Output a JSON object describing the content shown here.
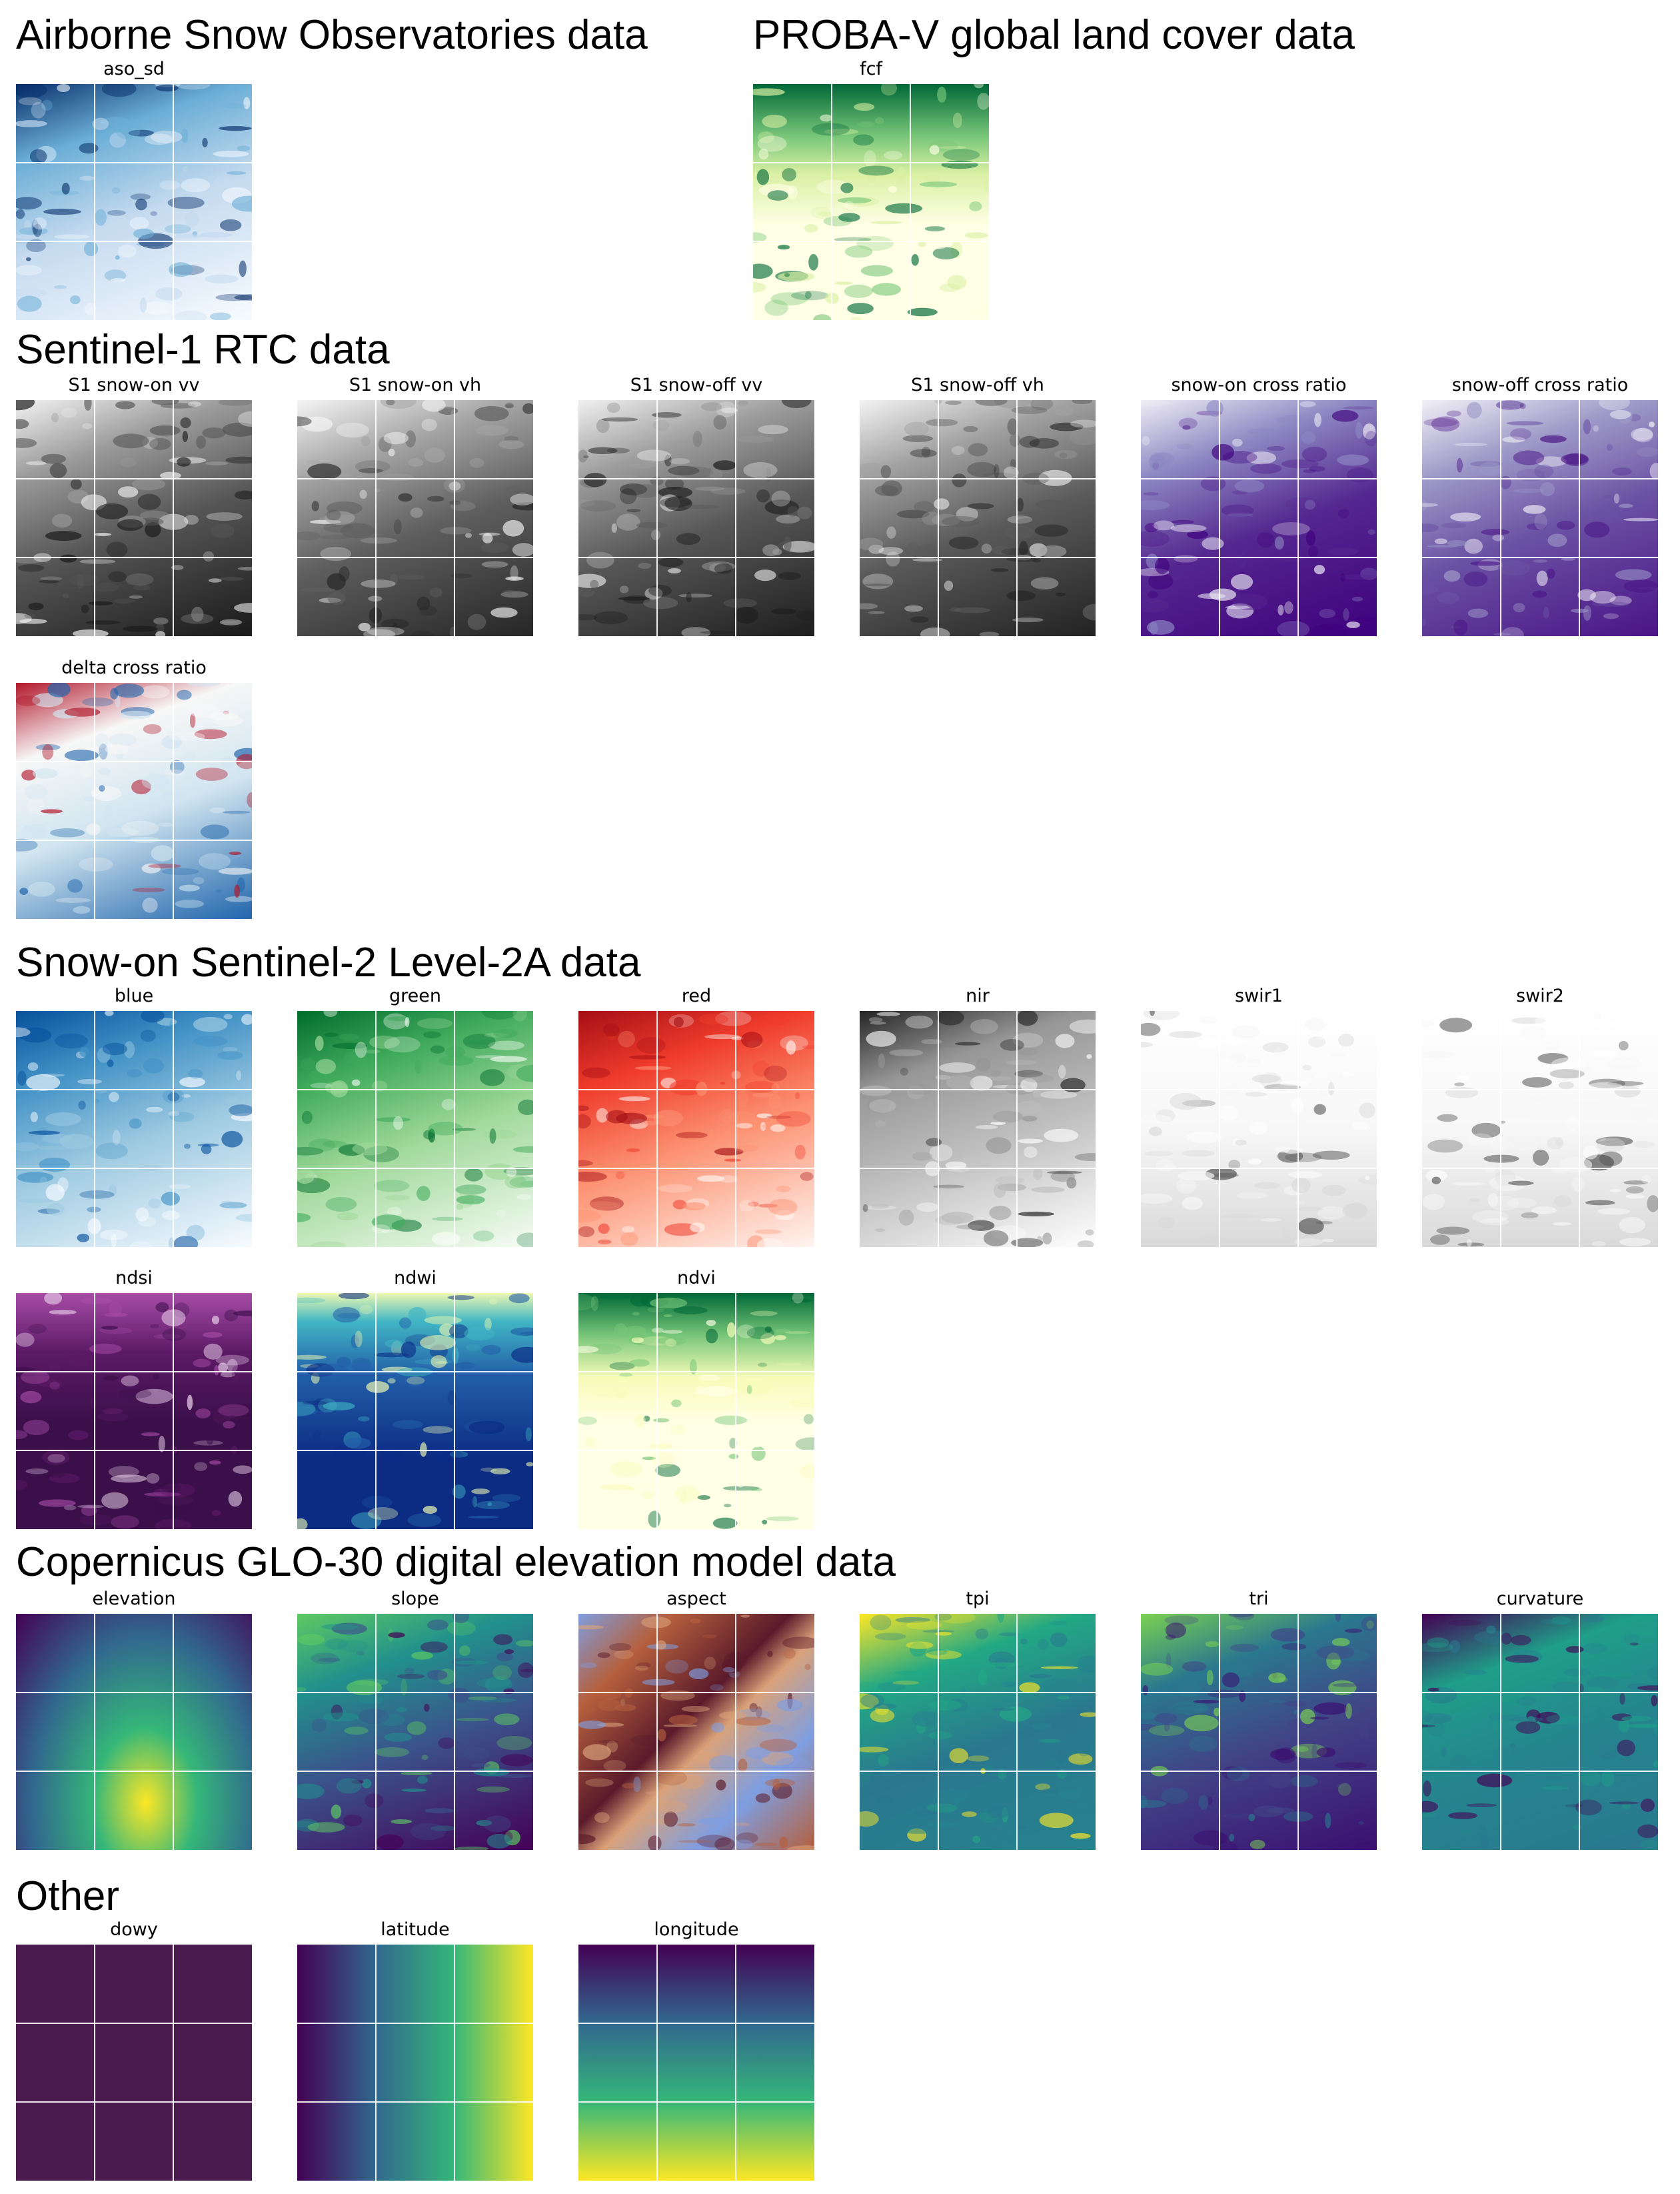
{
  "figure": {
    "sections": [
      {
        "title": "Airborne Snow Observatories data"
      },
      {
        "title": "PROBA-V global land cover data"
      },
      {
        "title": "Sentinel-1 RTC data"
      },
      {
        "title": "Snow-on Sentinel-2 Level-2A data"
      },
      {
        "title": "Copernicus GLO-30 digital elevation model data"
      },
      {
        "title": "Other"
      }
    ],
    "panels": [
      {
        "title": "aso_sd",
        "colormap": "Blues",
        "colors": [
          "#f7fbff",
          "#c6dbef",
          "#6baed6",
          "#08306b"
        ]
      },
      {
        "title": "fcf",
        "colormap": "YlGn",
        "colors": [
          "#ffffe5",
          "#d9f0a3",
          "#78c679",
          "#006837"
        ]
      },
      {
        "title": "S1 snow-on vv",
        "colormap": "Greys_r",
        "colors": [
          "#1a1a1a",
          "#555555",
          "#9a9a9a",
          "#f2f2f2"
        ]
      },
      {
        "title": "S1 snow-on vh",
        "colormap": "Greys_r",
        "colors": [
          "#262626",
          "#5e5e5e",
          "#a5a5a5",
          "#f5f5f5"
        ]
      },
      {
        "title": "S1 snow-off vv",
        "colormap": "Greys_r",
        "colors": [
          "#1e1e1e",
          "#575757",
          "#9c9c9c",
          "#f0f0f0"
        ]
      },
      {
        "title": "S1 snow-off vh",
        "colormap": "Greys_r",
        "colors": [
          "#222222",
          "#5a5a5a",
          "#a0a0a0",
          "#f3f3f3"
        ]
      },
      {
        "title": "snow-on cross ratio",
        "colormap": "Purples",
        "colors": [
          "#3f007d",
          "#54278f",
          "#8c87c2",
          "#efedf5"
        ]
      },
      {
        "title": "snow-off cross ratio",
        "colormap": "Purples",
        "colors": [
          "#4a1486",
          "#6a51a3",
          "#9e9ac8",
          "#f2f0f7"
        ]
      },
      {
        "title": "delta cross ratio",
        "colormap": "RdBu_r",
        "colors": [
          "#2166ac",
          "#d1e5f0",
          "#f7f7f7",
          "#b2182b"
        ]
      },
      {
        "title": "blue",
        "colormap": "Blues",
        "colors": [
          "#f7fbff",
          "#9ecae1",
          "#4292c6",
          "#08519c"
        ]
      },
      {
        "title": "green",
        "colormap": "Greens",
        "colors": [
          "#f7fcf5",
          "#a1d99b",
          "#41ab5d",
          "#006d2c"
        ]
      },
      {
        "title": "red",
        "colormap": "Reds",
        "colors": [
          "#fff5f0",
          "#fc9272",
          "#ef3b2c",
          "#a50f15"
        ]
      },
      {
        "title": "nir",
        "colormap": "Greys",
        "colors": [
          "#ffffff",
          "#bdbdbd",
          "#969696",
          "#252525"
        ]
      },
      {
        "title": "swir1",
        "colormap": "Greys",
        "colors": [
          "#ffffff",
          "#f7f7f7",
          "#d9d9d9",
          "#525252"
        ]
      },
      {
        "title": "swir2",
        "colormap": "Greys",
        "colors": [
          "#ffffff",
          "#f7f7f7",
          "#d9d9d9",
          "#525252"
        ]
      },
      {
        "title": "ndsi",
        "colormap": "magma-like",
        "colors": [
          "#3b0f4a",
          "#5c1a66",
          "#a64ca6",
          "#f0d9f0"
        ]
      },
      {
        "title": "ndwi",
        "colormap": "YlGnBu_r",
        "colors": [
          "#0c2c84",
          "#225ea8",
          "#41b6c4",
          "#edf8b1"
        ]
      },
      {
        "title": "ndvi",
        "colormap": "YlGn",
        "colors": [
          "#ffffe5",
          "#f7fcb9",
          "#78c679",
          "#006837"
        ]
      },
      {
        "title": "elevation",
        "colormap": "viridis",
        "colors": [
          "#440154",
          "#31688e",
          "#35b779",
          "#fde725"
        ]
      },
      {
        "title": "slope",
        "colormap": "viridis",
        "colors": [
          "#440154",
          "#3b528b",
          "#21918c",
          "#5ec962"
        ]
      },
      {
        "title": "aspect",
        "colormap": "twilight",
        "colors": [
          "#5a1a2a",
          "#b5603e",
          "#d9a27a",
          "#7f9ee0"
        ]
      },
      {
        "title": "tpi",
        "colormap": "viridis",
        "colors": [
          "#26828e",
          "#2a788e",
          "#22a884",
          "#fde725"
        ]
      },
      {
        "title": "tri",
        "colormap": "viridis",
        "colors": [
          "#3b0f70",
          "#414487",
          "#2a788e",
          "#7ad151"
        ]
      },
      {
        "title": "curvature",
        "colormap": "viridis",
        "colors": [
          "#2a788e",
          "#25858e",
          "#1f9e89",
          "#440154"
        ]
      },
      {
        "title": "dowy",
        "colormap": "viridis",
        "colors": [
          "#4b1a4f",
          "#4b1a4f",
          "#4b1a4f",
          "#4b1a4f"
        ]
      },
      {
        "title": "latitude",
        "colormap": "viridis",
        "colors": [
          "#440154",
          "#31688e",
          "#35b779",
          "#fde725"
        ]
      },
      {
        "title": "longitude",
        "colormap": "viridis",
        "colors": [
          "#440154",
          "#31688e",
          "#35b779",
          "#fde725"
        ]
      }
    ]
  },
  "chart_data": {
    "type": "heatmap",
    "title": "",
    "panels": [
      "aso_sd",
      "fcf",
      "S1 snow-on vv",
      "S1 snow-on vh",
      "S1 snow-off vv",
      "S1 snow-off vh",
      "snow-on cross ratio",
      "snow-off cross ratio",
      "delta cross ratio",
      "blue",
      "green",
      "red",
      "nir",
      "swir1",
      "swir2",
      "ndsi",
      "ndwi",
      "ndvi",
      "elevation",
      "slope",
      "aspect",
      "tpi",
      "tri",
      "curvature",
      "dowy",
      "latitude",
      "longitude"
    ],
    "grid": true,
    "axes": false,
    "colorbar": false
  }
}
